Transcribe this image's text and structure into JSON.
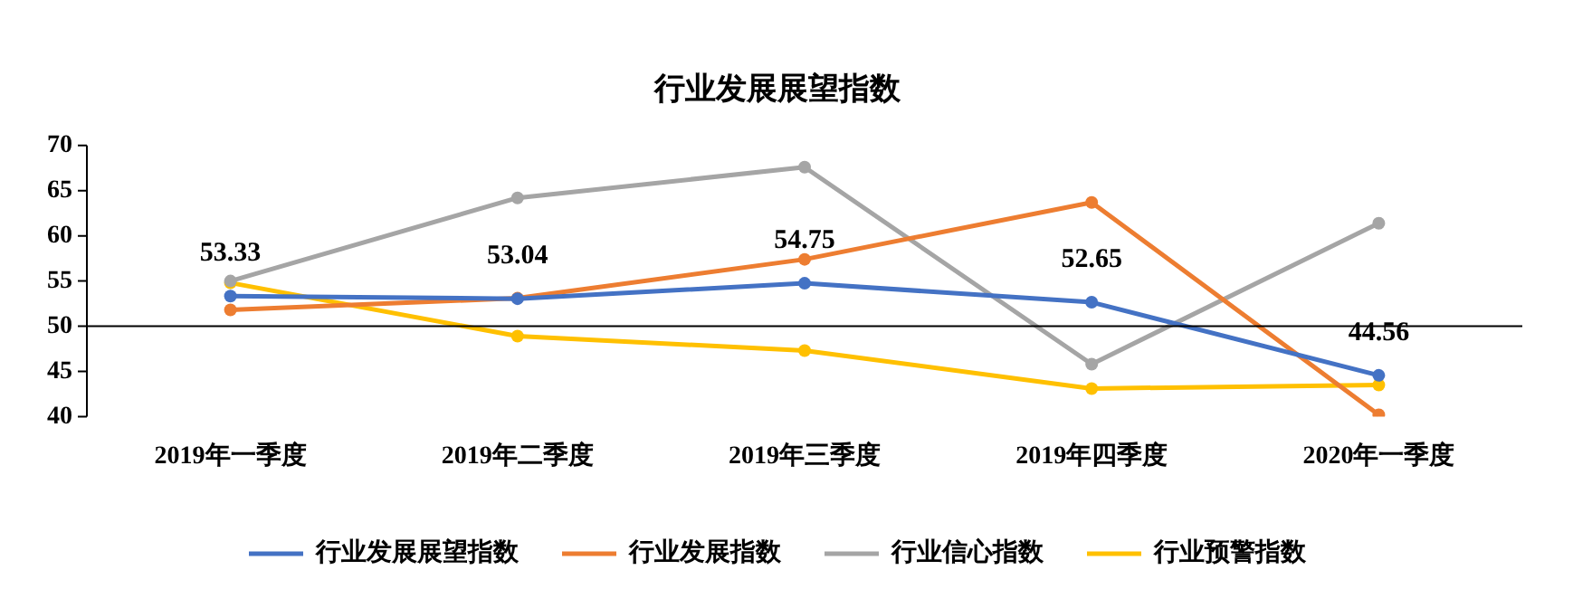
{
  "chart_data": {
    "type": "line",
    "title": "行业发展展望指数",
    "categories": [
      "2019年一季度",
      "2019年二季度",
      "2019年三季度",
      "2019年四季度",
      "2020年一季度"
    ],
    "series": [
      {
        "name": "行业发展展望指数",
        "color": "#4472c4",
        "values": [
          53.33,
          53.04,
          54.75,
          52.65,
          44.56
        ],
        "value_labels": [
          "53.33",
          "53.04",
          "54.75",
          "52.65",
          "44.56"
        ]
      },
      {
        "name": "行业发展指数",
        "color": "#ed7d31",
        "values": [
          51.8,
          53.1,
          57.4,
          63.7,
          40.2
        ]
      },
      {
        "name": "行业信心指数",
        "color": "#a5a5a5",
        "values": [
          55.0,
          64.2,
          67.6,
          45.8,
          61.4
        ]
      },
      {
        "name": "行业预警指数",
        "color": "#ffc000",
        "values": [
          54.8,
          48.9,
          47.3,
          43.1,
          43.5
        ]
      }
    ],
    "ylim": [
      40,
      70
    ],
    "yticks": [
      40,
      45,
      50,
      55,
      60,
      65,
      70
    ],
    "ref_lines": [
      {
        "axis": "y",
        "value": 50,
        "color": "#000000"
      }
    ],
    "grid": false,
    "legend": "bottom",
    "marker": "circle",
    "line_style": "solid"
  }
}
